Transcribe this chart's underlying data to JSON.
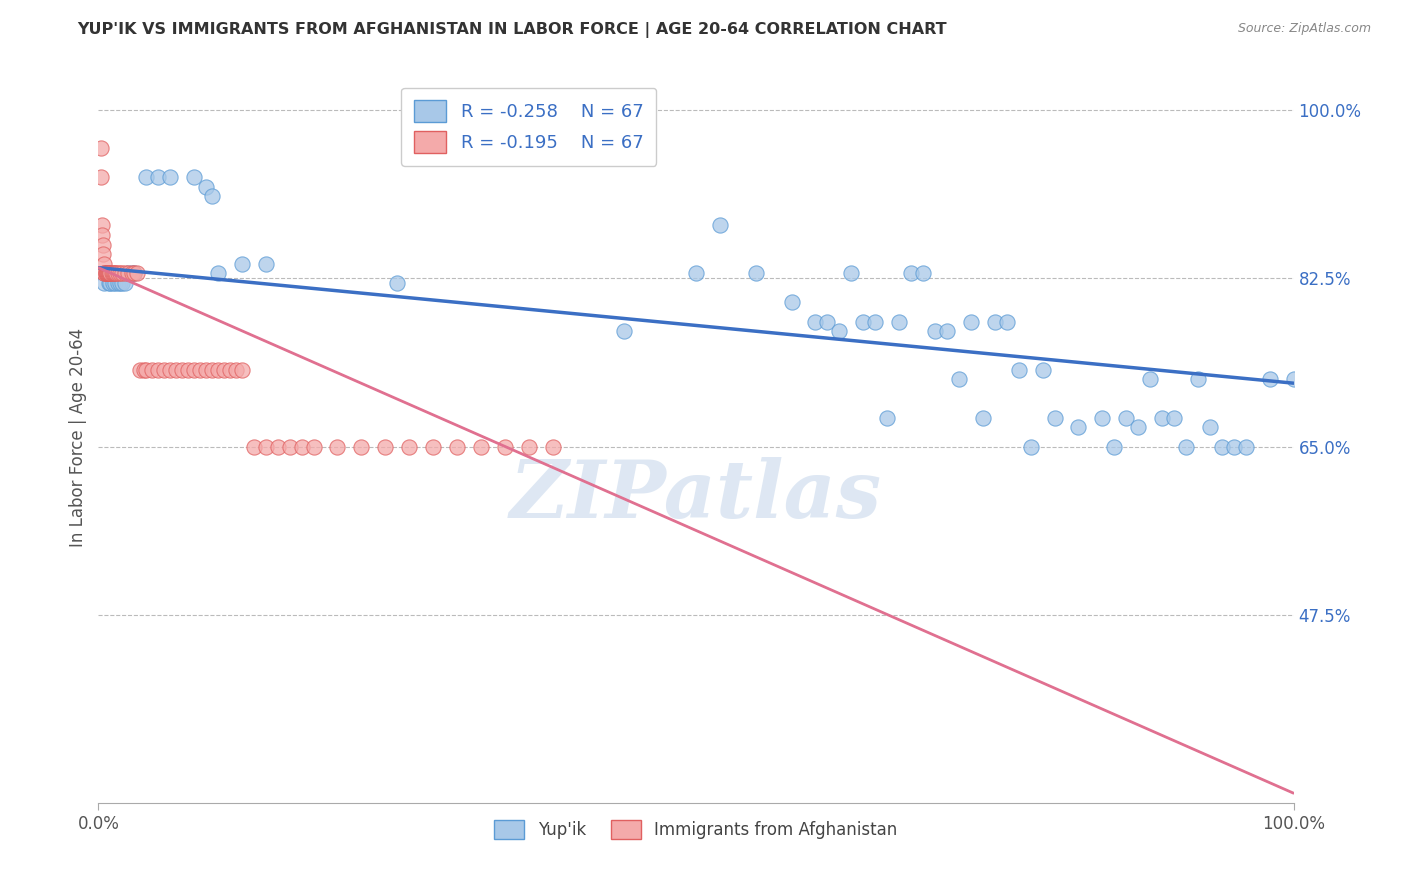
{
  "title": "YUP'IK VS IMMIGRANTS FROM AFGHANISTAN IN LABOR FORCE | AGE 20-64 CORRELATION CHART",
  "source": "Source: ZipAtlas.com",
  "ylabel": "In Labor Force | Age 20-64",
  "xlim": [
    0.0,
    1.0
  ],
  "ylim": [
    0.28,
    1.04
  ],
  "ytick_labels": [
    "47.5%",
    "65.0%",
    "82.5%",
    "100.0%"
  ],
  "ytick_values": [
    0.475,
    0.65,
    0.825,
    1.0
  ],
  "xtick_labels": [
    "0.0%",
    "100.0%"
  ],
  "legend_r1": "R = -0.258",
  "legend_n1": "N = 67",
  "legend_r2": "R = -0.195",
  "legend_n2": "N = 67",
  "color_blue": "#A8C8E8",
  "color_pink": "#F4AAAA",
  "edge_blue": "#5B9BD5",
  "edge_pink": "#E06060",
  "trendline_blue": "#3B6FC4",
  "trendline_pink": "#E07090",
  "watermark": "ZIPatlas",
  "blue_x": [
    0.005,
    0.005,
    0.007,
    0.008,
    0.009,
    0.01,
    0.012,
    0.014,
    0.016,
    0.018,
    0.02,
    0.022,
    0.025,
    0.028,
    0.03,
    0.04,
    0.05,
    0.06,
    0.08,
    0.09,
    0.095,
    0.1,
    0.12,
    0.14,
    0.25,
    0.44,
    0.5,
    0.52,
    0.55,
    0.58,
    0.6,
    0.61,
    0.62,
    0.63,
    0.64,
    0.65,
    0.66,
    0.67,
    0.68,
    0.69,
    0.7,
    0.71,
    0.72,
    0.73,
    0.74,
    0.75,
    0.76,
    0.77,
    0.78,
    0.79,
    0.8,
    0.82,
    0.84,
    0.85,
    0.86,
    0.87,
    0.88,
    0.89,
    0.9,
    0.91,
    0.92,
    0.93,
    0.94,
    0.95,
    0.96,
    0.98,
    1.0
  ],
  "blue_y": [
    0.83,
    0.82,
    0.83,
    0.83,
    0.82,
    0.82,
    0.82,
    0.82,
    0.82,
    0.82,
    0.82,
    0.82,
    0.83,
    0.83,
    0.83,
    0.93,
    0.93,
    0.93,
    0.93,
    0.92,
    0.91,
    0.83,
    0.84,
    0.84,
    0.82,
    0.77,
    0.83,
    0.88,
    0.83,
    0.8,
    0.78,
    0.78,
    0.77,
    0.83,
    0.78,
    0.78,
    0.68,
    0.78,
    0.83,
    0.83,
    0.77,
    0.77,
    0.72,
    0.78,
    0.68,
    0.78,
    0.78,
    0.73,
    0.65,
    0.73,
    0.68,
    0.67,
    0.68,
    0.65,
    0.68,
    0.67,
    0.72,
    0.68,
    0.68,
    0.65,
    0.72,
    0.67,
    0.65,
    0.65,
    0.65,
    0.72,
    0.72
  ],
  "pink_x": [
    0.002,
    0.002,
    0.003,
    0.003,
    0.004,
    0.004,
    0.005,
    0.005,
    0.005,
    0.006,
    0.006,
    0.007,
    0.007,
    0.008,
    0.008,
    0.009,
    0.009,
    0.01,
    0.01,
    0.011,
    0.012,
    0.013,
    0.014,
    0.015,
    0.016,
    0.018,
    0.02,
    0.022,
    0.025,
    0.028,
    0.03,
    0.032,
    0.035,
    0.038,
    0.04,
    0.045,
    0.05,
    0.055,
    0.06,
    0.065,
    0.07,
    0.075,
    0.08,
    0.085,
    0.09,
    0.095,
    0.1,
    0.105,
    0.11,
    0.115,
    0.12,
    0.13,
    0.14,
    0.15,
    0.16,
    0.17,
    0.18,
    0.2,
    0.22,
    0.24,
    0.26,
    0.28,
    0.3,
    0.32,
    0.34,
    0.36,
    0.38
  ],
  "pink_y": [
    0.96,
    0.93,
    0.88,
    0.87,
    0.86,
    0.85,
    0.84,
    0.83,
    0.83,
    0.83,
    0.83,
    0.83,
    0.83,
    0.83,
    0.83,
    0.83,
    0.83,
    0.83,
    0.83,
    0.83,
    0.83,
    0.83,
    0.83,
    0.83,
    0.83,
    0.83,
    0.83,
    0.83,
    0.83,
    0.83,
    0.83,
    0.83,
    0.73,
    0.73,
    0.73,
    0.73,
    0.73,
    0.73,
    0.73,
    0.73,
    0.73,
    0.73,
    0.73,
    0.73,
    0.73,
    0.73,
    0.73,
    0.73,
    0.73,
    0.73,
    0.73,
    0.65,
    0.65,
    0.65,
    0.65,
    0.65,
    0.65,
    0.65,
    0.65,
    0.65,
    0.65,
    0.65,
    0.65,
    0.65,
    0.65,
    0.65,
    0.65
  ],
  "trendline_blue_x0": 0.0,
  "trendline_blue_y0": 0.836,
  "trendline_blue_x1": 1.0,
  "trendline_blue_y1": 0.716,
  "trendline_pink_x0": 0.0,
  "trendline_pink_y0": 0.836,
  "trendline_pink_x1": 1.0,
  "trendline_pink_y1": 0.29
}
